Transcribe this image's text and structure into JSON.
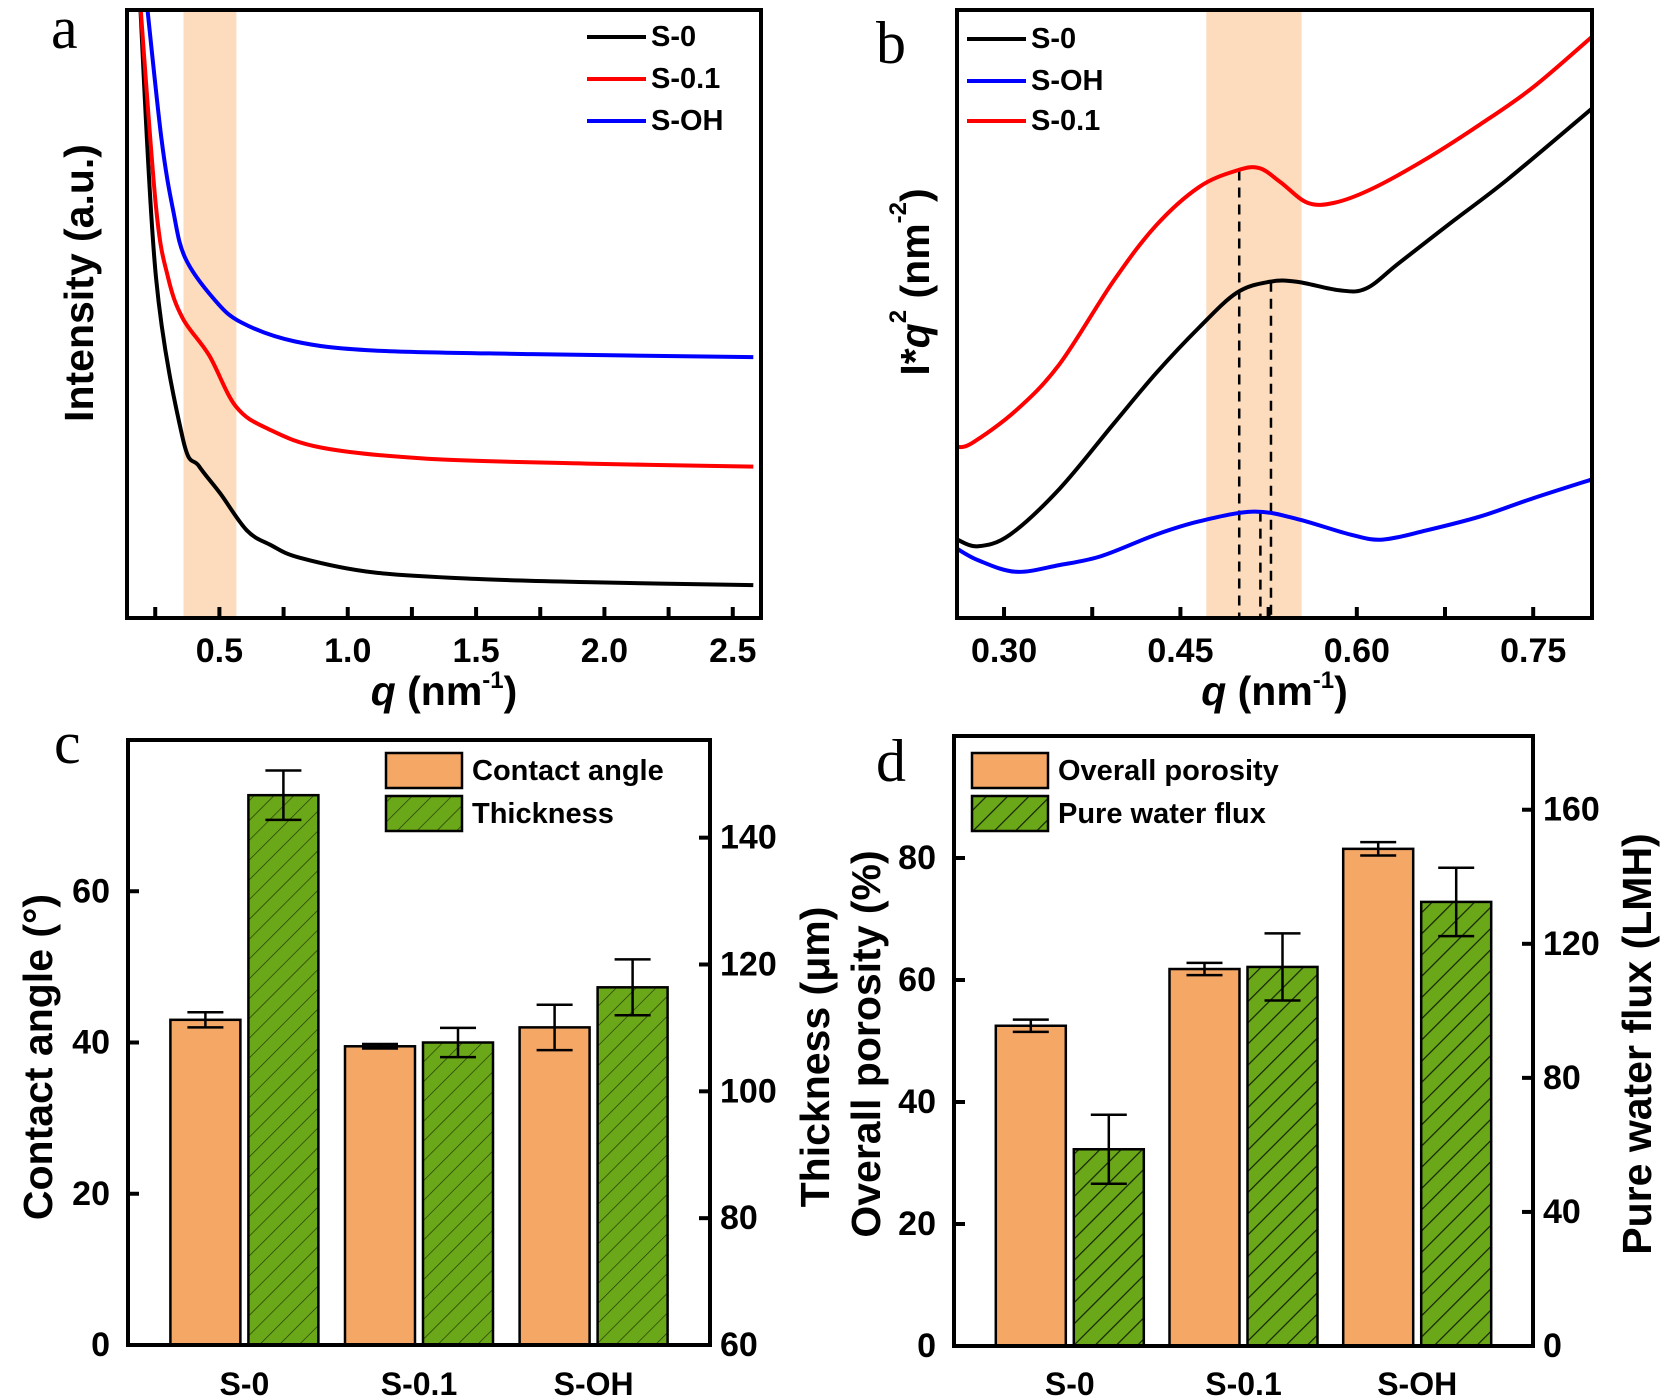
{
  "colors": {
    "black": "#000000",
    "red": "#ff0000",
    "blue": "#0000ff",
    "orange": "#f5a766",
    "green": "#6aa719",
    "band": "#fcdcbc"
  },
  "chart_data": [
    {
      "panel": "a",
      "type": "line",
      "xlabel": {
        "var": "q",
        "unit": " (nm",
        "exp": "-1",
        "close": ")"
      },
      "ylabel": "Intensity (a.u.)",
      "xlim": [
        0.14,
        2.61
      ],
      "ylim": [
        0,
        100
      ],
      "xticks": [
        0.25,
        0.5,
        0.75,
        1.0,
        1.25,
        1.5,
        1.75,
        2.0,
        2.25,
        2.5
      ],
      "xtick_labels": [
        {
          "v": 0.5,
          "t": "0.5"
        },
        {
          "v": 1.0,
          "t": "1.0"
        },
        {
          "v": 1.5,
          "t": "1.5"
        },
        {
          "v": 2.0,
          "t": "2.0"
        },
        {
          "v": 2.5,
          "t": "2.5"
        }
      ],
      "shaded_region": [
        0.36,
        0.566
      ],
      "legend_position": "top-right",
      "series": [
        {
          "name": "S-0",
          "color": "#000000",
          "points": [
            [
              0.19,
              102
            ],
            [
              0.253,
              56
            ],
            [
              0.357,
              29.6
            ],
            [
              0.42,
              25
            ],
            [
              0.503,
              20.5
            ],
            [
              0.607,
              14.4
            ],
            [
              0.7,
              12
            ],
            [
              0.814,
              9.9
            ],
            [
              1.1,
              7.5
            ],
            [
              1.52,
              6.4
            ],
            [
              1.93,
              5.9
            ],
            [
              2.58,
              5.4
            ]
          ]
        },
        {
          "name": "S-0.1",
          "color": "#ff0000",
          "points": [
            [
              0.19,
              102
            ],
            [
              0.253,
              67.6
            ],
            [
              0.3,
              56
            ],
            [
              0.357,
              49.3
            ],
            [
              0.46,
              43.2
            ],
            [
              0.564,
              34.8
            ],
            [
              0.69,
              31.1
            ],
            [
              0.9,
              28
            ],
            [
              1.31,
              26.2
            ],
            [
              1.93,
              25.4
            ],
            [
              2.58,
              24.9
            ]
          ]
        },
        {
          "name": "S-OH",
          "color": "#0000ff",
          "points": [
            [
              0.215,
              102
            ],
            [
              0.274,
              78.9
            ],
            [
              0.32,
              67
            ],
            [
              0.367,
              59.2
            ],
            [
              0.48,
              52.4
            ],
            [
              0.586,
              48.6
            ],
            [
              0.793,
              45.5
            ],
            [
              1.1,
              44
            ],
            [
              1.72,
              43.4
            ],
            [
              2.58,
              42.9
            ]
          ]
        }
      ]
    },
    {
      "panel": "b",
      "type": "line",
      "xlabel": {
        "var": "q",
        "unit": " (nm",
        "exp": "-1",
        "close": ")"
      },
      "ylabel": {
        "pre": "I*",
        "var": "q",
        "exp": "2",
        "unit": " (nm",
        "unit_exp": "-2",
        "close": ")"
      },
      "xlim": [
        0.26,
        0.8
      ],
      "ylim": [
        0,
        100
      ],
      "xticks": [
        0.3,
        0.375,
        0.45,
        0.525,
        0.6,
        0.675,
        0.75
      ],
      "xtick_labels": [
        {
          "v": 0.3,
          "t": "0.30"
        },
        {
          "v": 0.45,
          "t": "0.45"
        },
        {
          "v": 0.6,
          "t": "0.60"
        },
        {
          "v": 0.75,
          "t": "0.75"
        }
      ],
      "shaded_region": [
        0.472,
        0.553
      ],
      "legend_position": "top-left",
      "dashed_markers": [
        {
          "q": 0.5,
          "series": "S-0.1",
          "y": 73.6
        },
        {
          "q": 0.518,
          "series": "S-OH",
          "y": 17.5
        },
        {
          "q": 0.527,
          "series": "S-0",
          "y": 55.3
        }
      ],
      "series": [
        {
          "name": "S-0",
          "color": "#000000",
          "points": [
            [
              0.26,
              12.9
            ],
            [
              0.278,
              11.8
            ],
            [
              0.305,
              13.7
            ],
            [
              0.347,
              21.2
            ],
            [
              0.393,
              31.9
            ],
            [
              0.429,
              40.2
            ],
            [
              0.466,
              47.8
            ],
            [
              0.498,
              53.5
            ],
            [
              0.526,
              55.3
            ],
            [
              0.549,
              55.3
            ],
            [
              0.585,
              53.9
            ],
            [
              0.608,
              54.2
            ],
            [
              0.636,
              58.4
            ],
            [
              0.682,
              65.3
            ],
            [
              0.728,
              72.1
            ],
            [
              0.8,
              83.8
            ]
          ]
        },
        {
          "name": "S-OH",
          "color": "#0000ff",
          "points": [
            [
              0.26,
              11.4
            ],
            [
              0.278,
              9.5
            ],
            [
              0.31,
              7.6
            ],
            [
              0.347,
              8.7
            ],
            [
              0.383,
              10.2
            ],
            [
              0.429,
              13.7
            ],
            [
              0.466,
              15.9
            ],
            [
              0.512,
              17.5
            ],
            [
              0.549,
              16.3
            ],
            [
              0.595,
              13.7
            ],
            [
              0.622,
              12.9
            ],
            [
              0.659,
              14.4
            ],
            [
              0.705,
              16.7
            ],
            [
              0.75,
              19.7
            ],
            [
              0.8,
              22.8
            ]
          ]
        },
        {
          "name": "S-0.1",
          "color": "#ff0000",
          "points": [
            [
              0.26,
              28.1
            ],
            [
              0.273,
              28.8
            ],
            [
              0.31,
              34.1
            ],
            [
              0.347,
              41.7
            ],
            [
              0.393,
              55.4
            ],
            [
              0.429,
              64.5
            ],
            [
              0.466,
              70.9
            ],
            [
              0.498,
              73.6
            ],
            [
              0.517,
              74
            ],
            [
              0.535,
              71.7
            ],
            [
              0.558,
              68.3
            ],
            [
              0.581,
              68.3
            ],
            [
              0.613,
              70.6
            ],
            [
              0.659,
              75.5
            ],
            [
              0.705,
              81.2
            ],
            [
              0.75,
              87.3
            ],
            [
              0.8,
              95.6
            ]
          ]
        }
      ]
    },
    {
      "panel": "c",
      "type": "bar",
      "categories": [
        "S-0",
        "S-0.1",
        "S-OH"
      ],
      "ylabel_left": "Contact angle (°)",
      "ylabel_right": "Thickness (μm)",
      "ylim_left": [
        0,
        80
      ],
      "ylim_right": [
        60,
        155.4
      ],
      "yticks_left": [
        0,
        20,
        40,
        60
      ],
      "yticks_right": [
        60,
        80,
        100,
        120,
        140
      ],
      "legend_position": "top-right",
      "series": [
        {
          "name": "Contact angle",
          "axis": "left",
          "color": "#f5a766",
          "hatched": false,
          "values": [
            43,
            39.5,
            42
          ],
          "errors": [
            1,
            0.3,
            3
          ]
        },
        {
          "name": "Thickness",
          "axis": "right",
          "color": "#6aa719",
          "hatched": true,
          "values": [
            146.7,
            107.7,
            116.4
          ],
          "errors": [
            3.9,
            2.3,
            4.4
          ]
        }
      ]
    },
    {
      "panel": "d",
      "type": "bar",
      "categories": [
        "S-0",
        "S-0.1",
        "S-OH"
      ],
      "ylabel_left": "Overall porosity (%)",
      "ylabel_right": "Pure water flux (LMH)",
      "ylim_left": [
        0,
        100
      ],
      "ylim_right": [
        0,
        182
      ],
      "yticks_left": [
        0,
        20,
        40,
        60,
        80
      ],
      "yticks_right": [
        0,
        40,
        80,
        120,
        160
      ],
      "legend_position": "top-left",
      "series": [
        {
          "name": "Overall porosity",
          "axis": "left",
          "color": "#f5a766",
          "hatched": false,
          "values": [
            52.5,
            61.8,
            81.5
          ],
          "errors": [
            1,
            1,
            1.1
          ]
        },
        {
          "name": "Pure water flux",
          "axis": "right",
          "color": "#6aa719",
          "hatched": true,
          "values": [
            58.7,
            113.1,
            132.5
          ],
          "errors": [
            10.3,
            10,
            10.2
          ]
        }
      ]
    }
  ]
}
